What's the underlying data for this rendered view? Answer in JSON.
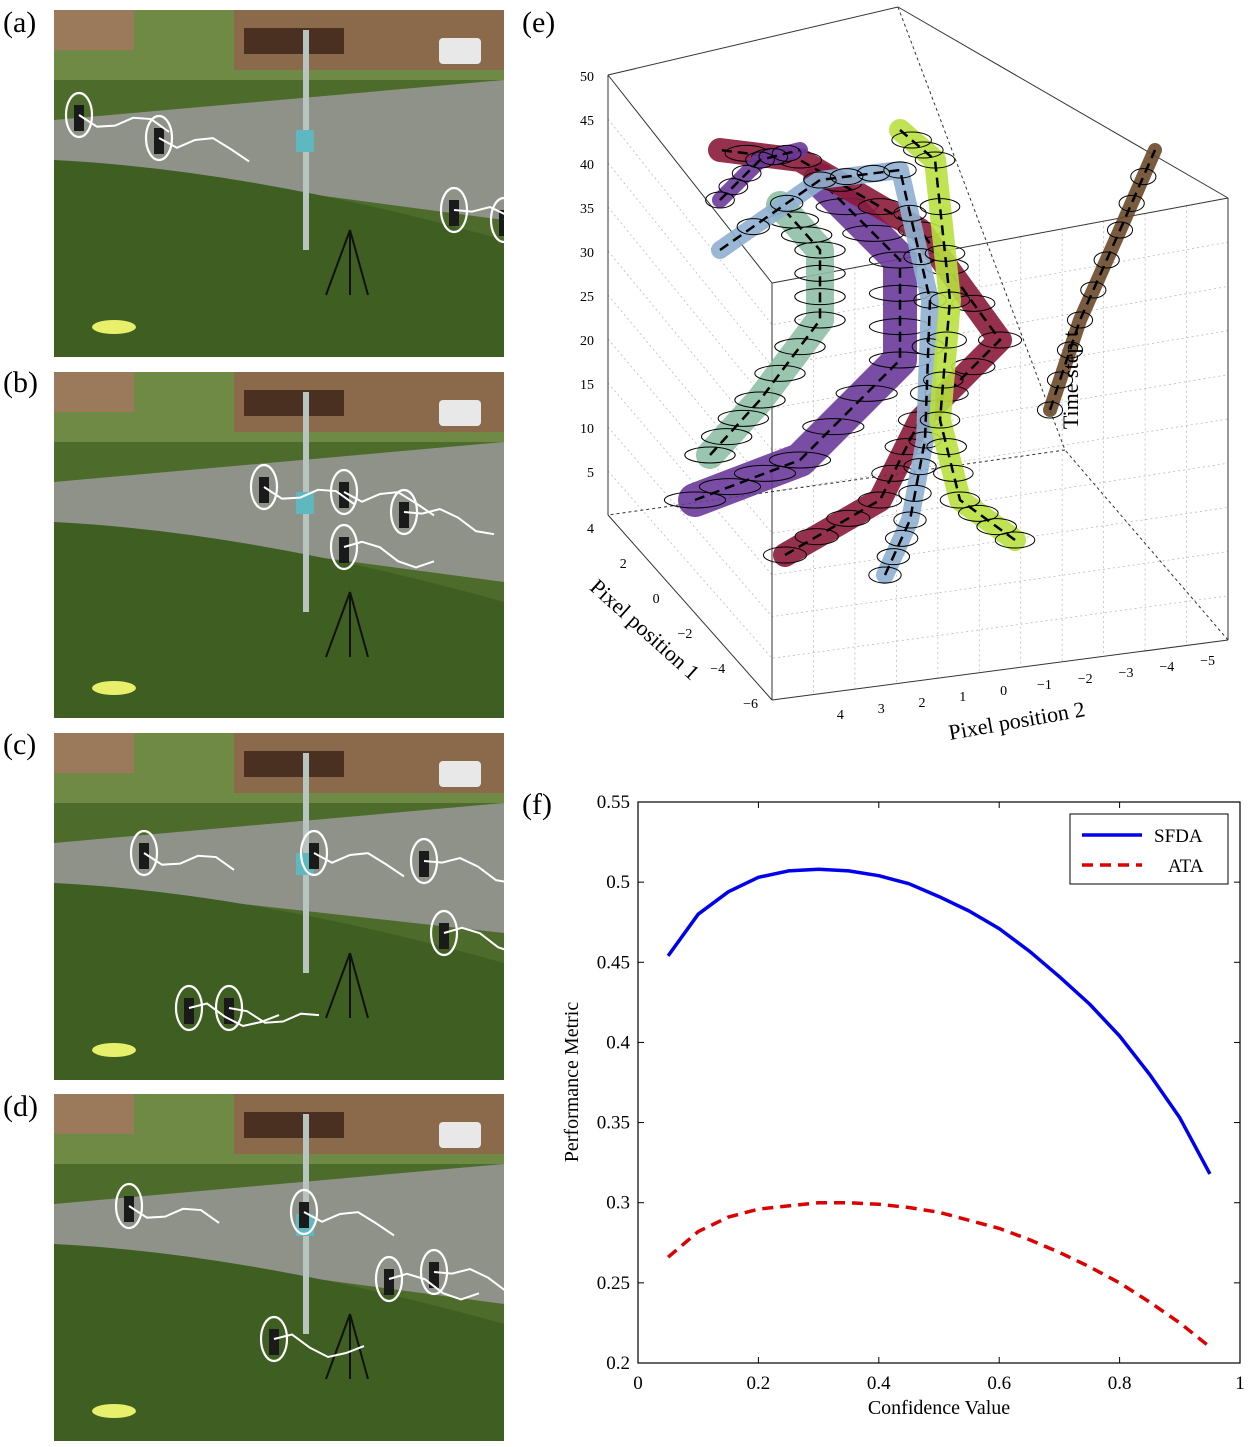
{
  "panels": {
    "a": "(a)",
    "b": "(b)",
    "c": "(c)",
    "d": "(d)",
    "e": "(e)",
    "f": "(f)"
  },
  "plot3d": {
    "zlabel": "Time step t",
    "xlabel": "Pixel position 1",
    "ylabel": "Pixel position 2",
    "zticks": [
      "5",
      "10",
      "15",
      "20",
      "25",
      "30",
      "35",
      "40",
      "45",
      "50"
    ],
    "xticks": [
      "4",
      "2",
      "0",
      "−2",
      "−4",
      "−6"
    ],
    "yticks": [
      "4",
      "3",
      "2",
      "1",
      "0",
      "−1",
      "−2",
      "−3",
      "−4",
      "−5"
    ]
  },
  "colors": {
    "sfda": "#0000ee",
    "ata": "#dd0000",
    "purple": "#6a3a9a",
    "maroon": "#8a1a3a",
    "teal": "#8fbfa5",
    "lightblue": "#8fb0d0",
    "lime": "#b8e040",
    "brown": "#6a4a2a"
  },
  "chart_data": {
    "type": "line",
    "title": "",
    "xlabel": "Confidence Value",
    "ylabel": "Performance Metric",
    "xlim": [
      0,
      1
    ],
    "ylim": [
      0.2,
      0.55
    ],
    "xticks": [
      "0",
      "0.2",
      "0.4",
      "0.6",
      "0.8",
      "1"
    ],
    "yticks": [
      "0.2",
      "0.25",
      "0.3",
      "0.35",
      "0.4",
      "0.45",
      "0.5",
      "0.55"
    ],
    "legend_position": "top-right",
    "x": [
      0.05,
      0.1,
      0.15,
      0.2,
      0.25,
      0.3,
      0.35,
      0.4,
      0.45,
      0.5,
      0.55,
      0.6,
      0.65,
      0.7,
      0.75,
      0.8,
      0.85,
      0.9,
      0.95
    ],
    "series": [
      {
        "name": "SFDA",
        "style": "solid",
        "values": [
          0.454,
          0.48,
          0.494,
          0.503,
          0.507,
          0.508,
          0.507,
          0.504,
          0.499,
          0.491,
          0.482,
          0.471,
          0.457,
          0.441,
          0.424,
          0.404,
          0.38,
          0.353,
          0.318
        ]
      },
      {
        "name": "ATA",
        "style": "dashed",
        "values": [
          0.266,
          0.282,
          0.291,
          0.296,
          0.298,
          0.3,
          0.3,
          0.299,
          0.297,
          0.294,
          0.289,
          0.284,
          0.277,
          0.269,
          0.26,
          0.25,
          0.238,
          0.225,
          0.21
        ]
      }
    ]
  }
}
